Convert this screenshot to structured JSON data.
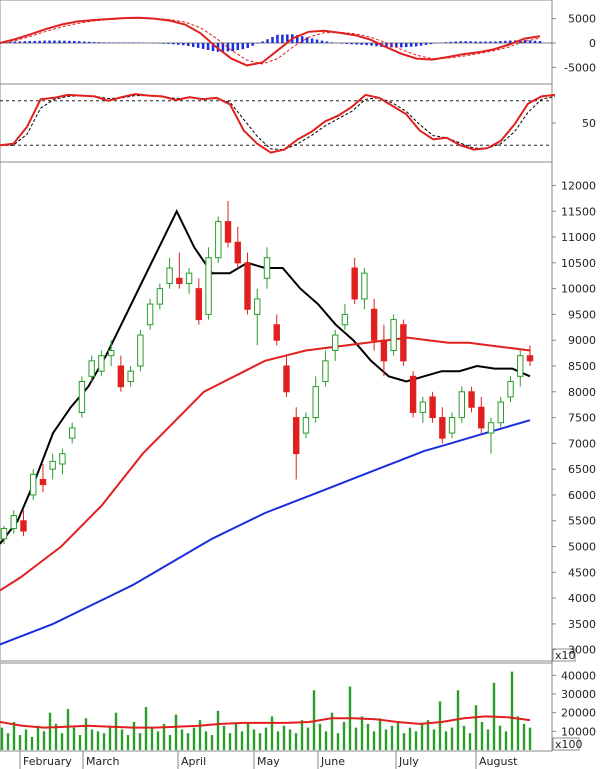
{
  "colors": {
    "up": "#2a9d2a",
    "down": "#e0201e",
    "ma_short": "#000000",
    "ma_mid": "#e0201e",
    "ma_long": "#1a2ee0",
    "macd_line": "#e0201e",
    "macd_hist": "#1a2ee0",
    "volume_bar": "#2a9d2a",
    "volume_ma": "#e0201e"
  },
  "chart_data": [
    {
      "type": "line",
      "panel": "macd",
      "yticks": [
        5000,
        0,
        -5000
      ],
      "ylim": [
        -8000,
        8000
      ],
      "series": [
        {
          "values": [
            0,
            800,
            1800,
            2900,
            3800,
            4400,
            4700,
            4900,
            5100,
            5200,
            5000,
            4600,
            3800,
            2000,
            -800,
            -3200,
            -4600,
            -4000,
            -1500,
            1000,
            2300,
            2500,
            2100,
            1600,
            700,
            -800,
            -2200,
            -3200,
            -3400,
            -2900,
            -2300,
            -1900,
            -1300,
            -300,
            900,
            1400
          ]
        },
        {
          "values": [
            0,
            500,
            1400,
            2400,
            3300,
            4000,
            4500,
            4800,
            5000,
            5100,
            5050,
            4800,
            4300,
            3100,
            1000,
            -1500,
            -3500,
            -4300,
            -3200,
            -800,
            1200,
            2100,
            2200,
            1900,
            1200,
            100,
            -1300,
            -2500,
            -3200,
            -3100,
            -2700,
            -2200,
            -1600,
            -800,
            300,
            1000
          ]
        },
        {
          "values": [
            0,
            300,
            400,
            500,
            500,
            400,
            200,
            100,
            100,
            100,
            -50,
            -200,
            -500,
            -1100,
            -1800,
            -1700,
            -1100,
            300,
            1700,
            1800,
            1100,
            400,
            -100,
            -300,
            -500,
            -900,
            -900,
            -700,
            -200,
            200,
            400,
            300,
            300,
            500,
            600,
            400
          ]
        }
      ]
    },
    {
      "type": "line",
      "panel": "stochastic",
      "yticks": [
        50
      ],
      "levels": [
        80,
        20
      ],
      "ylim": [
        0,
        100
      ],
      "series": [
        {
          "values": [
            20,
            22,
            45,
            82,
            84,
            88,
            87,
            86,
            80,
            85,
            89,
            87,
            86,
            81,
            85,
            82,
            84,
            75,
            40,
            22,
            10,
            14,
            28,
            38,
            52,
            60,
            72,
            88,
            84,
            73,
            62,
            40,
            28,
            30,
            20,
            14,
            16,
            26,
            48,
            76,
            86,
            88
          ]
        },
        {
          "values": [
            20,
            20,
            35,
            70,
            82,
            86,
            87,
            86,
            83,
            84,
            87,
            87,
            86,
            83,
            84,
            83,
            83,
            78,
            55,
            32,
            15,
            14,
            22,
            33,
            46,
            56,
            66,
            82,
            84,
            77,
            66,
            48,
            33,
            30,
            23,
            16,
            16,
            22,
            38,
            64,
            82,
            86
          ]
        }
      ]
    },
    {
      "type": "candlestick",
      "panel": "price",
      "xlabel_ticks": [
        "February",
        "March",
        "April",
        "May",
        "June",
        "July",
        "August"
      ],
      "yticks": [
        12000,
        11500,
        11000,
        10500,
        10000,
        9500,
        9000,
        8500,
        8000,
        7500,
        7000,
        6500,
        6000,
        5500,
        5000,
        4500,
        4000,
        3500,
        3000
      ],
      "ylim": [
        2800,
        12300
      ],
      "multiplier_label": "x10",
      "candles": [
        {
          "o": 5150,
          "h": 5400,
          "l": 5050,
          "c": 5350
        },
        {
          "o": 5350,
          "h": 5700,
          "l": 5250,
          "c": 5600
        },
        {
          "o": 5500,
          "h": 5700,
          "l": 5200,
          "c": 5300
        },
        {
          "o": 6000,
          "h": 6500,
          "l": 5900,
          "c": 6400
        },
        {
          "o": 6300,
          "h": 6600,
          "l": 6050,
          "c": 6200
        },
        {
          "o": 6500,
          "h": 6800,
          "l": 6300,
          "c": 6650
        },
        {
          "o": 6600,
          "h": 6900,
          "l": 6400,
          "c": 6800
        },
        {
          "o": 7100,
          "h": 7400,
          "l": 7000,
          "c": 7300
        },
        {
          "o": 7600,
          "h": 8300,
          "l": 7500,
          "c": 8200
        },
        {
          "o": 8300,
          "h": 8700,
          "l": 8200,
          "c": 8600
        },
        {
          "o": 8400,
          "h": 8800,
          "l": 8300,
          "c": 8700
        },
        {
          "o": 8700,
          "h": 9000,
          "l": 8500,
          "c": 8800
        },
        {
          "o": 8500,
          "h": 8700,
          "l": 8000,
          "c": 8100
        },
        {
          "o": 8200,
          "h": 8500,
          "l": 8100,
          "c": 8400
        },
        {
          "o": 8500,
          "h": 9200,
          "l": 8400,
          "c": 9100
        },
        {
          "o": 9300,
          "h": 9800,
          "l": 9200,
          "c": 9700
        },
        {
          "o": 9700,
          "h": 10100,
          "l": 9600,
          "c": 10000
        },
        {
          "o": 10100,
          "h": 10600,
          "l": 10000,
          "c": 10400
        },
        {
          "o": 10200,
          "h": 10700,
          "l": 10000,
          "c": 10100
        },
        {
          "o": 10100,
          "h": 10400,
          "l": 9900,
          "c": 10300
        },
        {
          "o": 10000,
          "h": 10200,
          "l": 9300,
          "c": 9400
        },
        {
          "o": 9500,
          "h": 10800,
          "l": 9400,
          "c": 10600
        },
        {
          "o": 10600,
          "h": 11400,
          "l": 10500,
          "c": 11300
        },
        {
          "o": 11300,
          "h": 11700,
          "l": 10800,
          "c": 10900
        },
        {
          "o": 10900,
          "h": 11200,
          "l": 10400,
          "c": 10500
        },
        {
          "o": 10500,
          "h": 10700,
          "l": 9500,
          "c": 9600
        },
        {
          "o": 9500,
          "h": 10000,
          "l": 8900,
          "c": 9800
        },
        {
          "o": 10200,
          "h": 10800,
          "l": 10000,
          "c": 10600
        },
        {
          "o": 9300,
          "h": 9500,
          "l": 8900,
          "c": 9000
        },
        {
          "o": 8500,
          "h": 8700,
          "l": 7900,
          "c": 8000
        },
        {
          "o": 7500,
          "h": 7700,
          "l": 6300,
          "c": 6800
        },
        {
          "o": 7200,
          "h": 7600,
          "l": 7100,
          "c": 7500
        },
        {
          "o": 7500,
          "h": 8300,
          "l": 7400,
          "c": 8100
        },
        {
          "o": 8200,
          "h": 8800,
          "l": 8100,
          "c": 8600
        },
        {
          "o": 8800,
          "h": 9200,
          "l": 8600,
          "c": 9100
        },
        {
          "o": 9300,
          "h": 9700,
          "l": 9200,
          "c": 9500
        },
        {
          "o": 10400,
          "h": 10600,
          "l": 9700,
          "c": 9800
        },
        {
          "o": 9800,
          "h": 10400,
          "l": 9600,
          "c": 10300
        },
        {
          "o": 9600,
          "h": 9800,
          "l": 8800,
          "c": 9000
        },
        {
          "o": 9000,
          "h": 9300,
          "l": 8300,
          "c": 8600
        },
        {
          "o": 8800,
          "h": 9500,
          "l": 8700,
          "c": 9400
        },
        {
          "o": 9300,
          "h": 9400,
          "l": 8500,
          "c": 8600
        },
        {
          "o": 8300,
          "h": 8400,
          "l": 7500,
          "c": 7600
        },
        {
          "o": 7600,
          "h": 7900,
          "l": 7400,
          "c": 7800
        },
        {
          "o": 7900,
          "h": 8000,
          "l": 7400,
          "c": 7500
        },
        {
          "o": 7500,
          "h": 7700,
          "l": 7000,
          "c": 7100
        },
        {
          "o": 7200,
          "h": 7600,
          "l": 7100,
          "c": 7500
        },
        {
          "o": 7500,
          "h": 8100,
          "l": 7400,
          "c": 8000
        },
        {
          "o": 8000,
          "h": 8100,
          "l": 7600,
          "c": 7700
        },
        {
          "o": 7700,
          "h": 7900,
          "l": 7200,
          "c": 7300
        },
        {
          "o": 7200,
          "h": 7500,
          "l": 6800,
          "c": 7400
        },
        {
          "o": 7400,
          "h": 7900,
          "l": 7300,
          "c": 7800
        },
        {
          "o": 7900,
          "h": 8300,
          "l": 7800,
          "c": 8200
        },
        {
          "o": 8300,
          "h": 8800,
          "l": 8100,
          "c": 8700
        },
        {
          "o": 8700,
          "h": 8900,
          "l": 8500,
          "c": 8600
        }
      ],
      "series": [
        {
          "values": [
            5050,
            5500,
            6300,
            7200,
            7700,
            8100,
            8700,
            9400,
            10100,
            10800,
            11500,
            10800,
            10300,
            10300,
            10500,
            10400,
            10400,
            10000,
            9700,
            9300,
            9000,
            8600,
            8300,
            8200,
            8300,
            8400,
            8400,
            8500,
            8450,
            8450,
            8300
          ]
        },
        {
          "values": [
            4150,
            4400,
            4700,
            5000,
            5400,
            5800,
            6300,
            6800,
            7200,
            7600,
            8000,
            8200,
            8400,
            8600,
            8700,
            8800,
            8850,
            8900,
            8950,
            9000,
            9050,
            9000,
            8950,
            8950,
            8900,
            8850,
            8800
          ]
        },
        {
          "values": [
            3100,
            3300,
            3500,
            3750,
            4000,
            4250,
            4550,
            4850,
            5150,
            5400,
            5650,
            5850,
            6050,
            6250,
            6450,
            6650,
            6850,
            7000,
            7150,
            7300,
            7450
          ]
        }
      ]
    },
    {
      "type": "bar",
      "panel": "volume",
      "xlabel_ticks": [
        "February",
        "March",
        "April",
        "May",
        "June",
        "July",
        "August"
      ],
      "yticks": [
        40000,
        30000,
        20000,
        10000
      ],
      "ylim": [
        0,
        45000
      ],
      "multiplier_label": "x100",
      "values": [
        12000,
        9000,
        15000,
        8000,
        11000,
        7000,
        13000,
        10000,
        20000,
        14000,
        9000,
        22000,
        12000,
        8000,
        17000,
        11000,
        10000,
        9000,
        13000,
        20000,
        11000,
        8000,
        15000,
        9000,
        23000,
        12000,
        10000,
        14000,
        8000,
        19000,
        11000,
        9000,
        12000,
        16000,
        10000,
        8000,
        21000,
        13000,
        9000,
        14000,
        10000,
        15000,
        11000,
        9000,
        12000,
        18000,
        10000,
        13000,
        11000,
        9000,
        16000,
        12000,
        32000,
        14000,
        10000,
        20000,
        9000,
        15000,
        34000,
        12000,
        18000,
        14000,
        10000,
        17000,
        11000,
        13000,
        15000,
        9000,
        12000,
        10000,
        14000,
        16000,
        11000,
        26000,
        10000,
        12000,
        32000,
        13000,
        9000,
        24000,
        15000,
        11000,
        36000,
        13000,
        10000,
        42000,
        18000,
        14000,
        12000
      ],
      "series": [
        {
          "values": [
            15000,
            13000,
            12000,
            12500,
            13000,
            12500,
            12000,
            12000,
            12500,
            13000,
            14000,
            14500,
            14500,
            14500,
            15000,
            17000,
            17000,
            16500,
            15000,
            14000,
            15000,
            17000,
            18000,
            17500,
            16000
          ]
        }
      ]
    }
  ]
}
